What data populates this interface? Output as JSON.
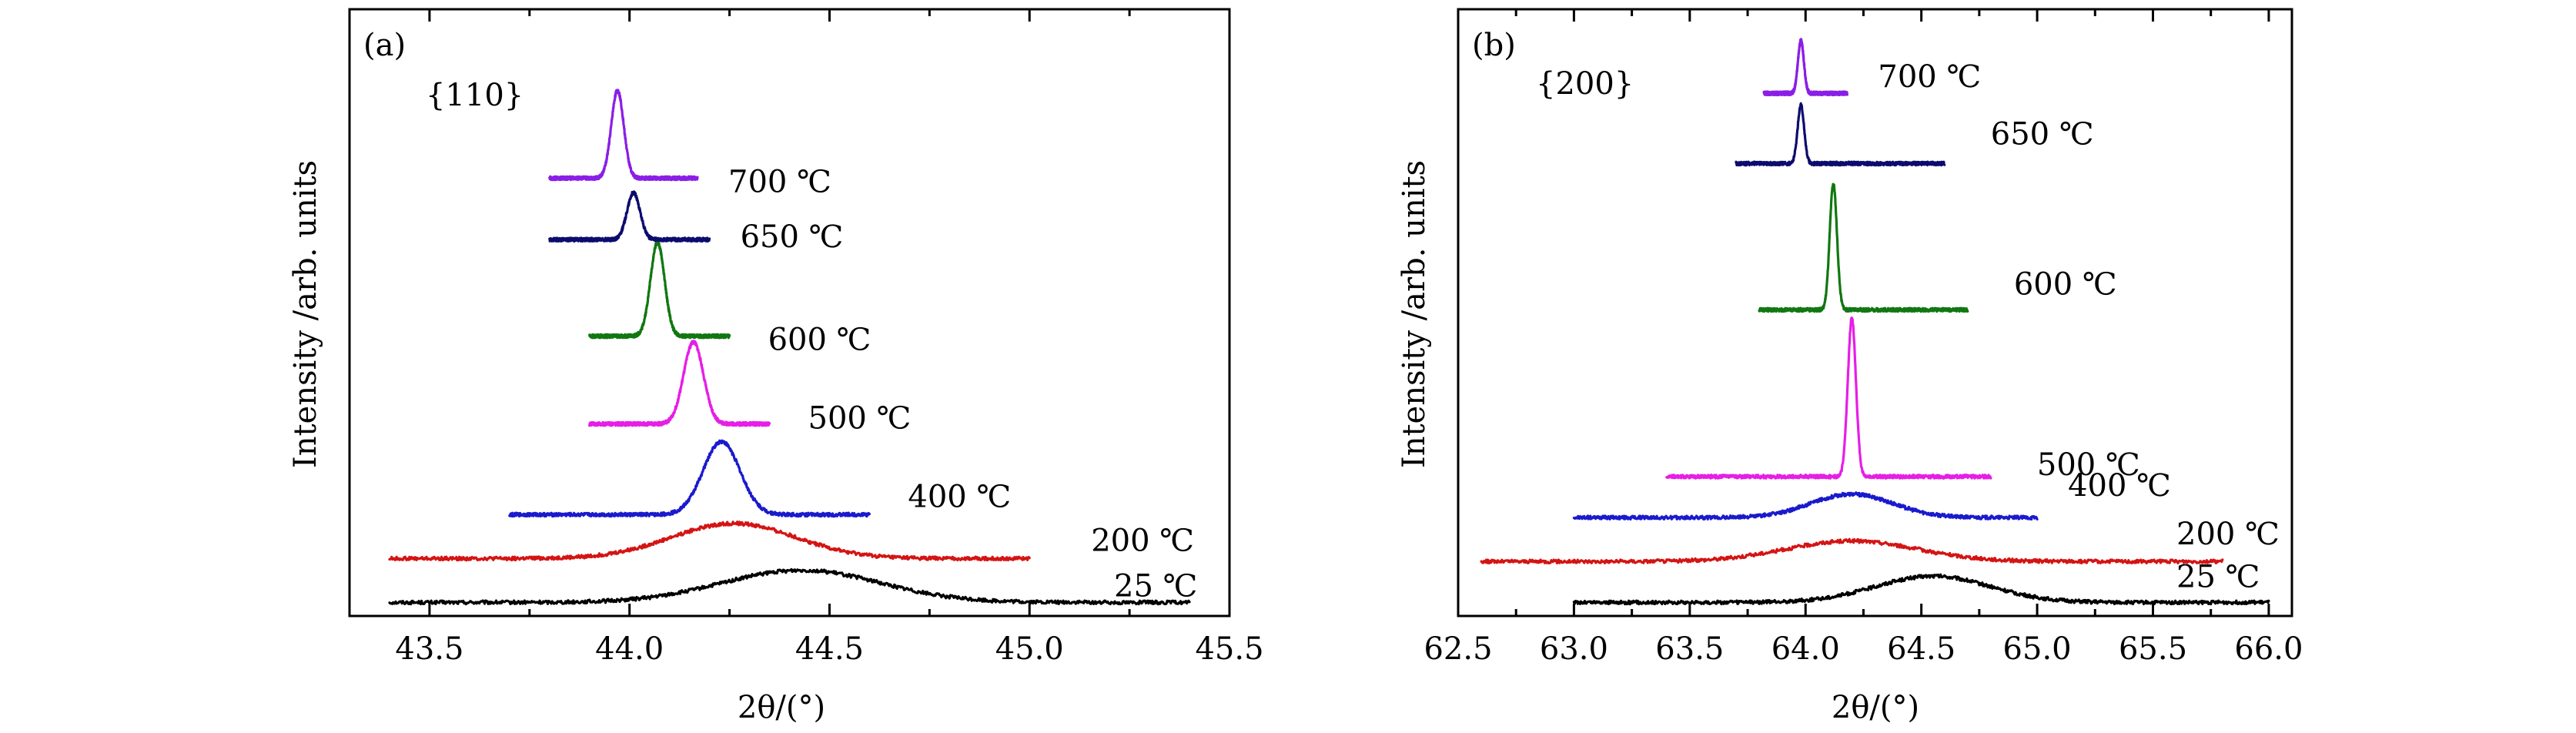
{
  "chart_data": [
    {
      "type": "line",
      "panel_label": "(a)",
      "annotation": "{110}",
      "xlabel": "2θ/(°)",
      "ylabel": "Intensity /arb. units",
      "xlim": [
        43.3,
        45.5
      ],
      "xticks": [
        "43.5",
        "44.0",
        "44.5",
        "45.0",
        "45.5"
      ],
      "yticks": "none",
      "grid": false,
      "legend": "none",
      "series": [
        {
          "label": "25 ℃",
          "color": "#000000",
          "peak": 44.43,
          "x_range": [
            43.4,
            45.4
          ],
          "width": 0.28,
          "height": 0.055,
          "baseline": 0.01
        },
        {
          "label": "200 ℃",
          "color": "#d41414",
          "peak": 44.26,
          "x_range": [
            43.4,
            45.0
          ],
          "width": 0.22,
          "height": 0.06,
          "baseline": 0.085
        },
        {
          "label": "400 ℃",
          "color": "#1a1acd",
          "peak": 44.23,
          "x_range": [
            43.7,
            44.6
          ],
          "width": 0.065,
          "height": 0.125,
          "baseline": 0.16
        },
        {
          "label": "500 ℃",
          "color": "#e61ee6",
          "peak": 44.16,
          "x_range": [
            43.9,
            44.35
          ],
          "width": 0.035,
          "height": 0.14,
          "baseline": 0.315
        },
        {
          "label": "600 ℃",
          "color": "#117711",
          "peak": 44.07,
          "x_range": [
            43.9,
            44.25
          ],
          "width": 0.025,
          "height": 0.16,
          "baseline": 0.465
        },
        {
          "label": "650 ℃",
          "color": "#0c0c6e",
          "peak": 44.01,
          "x_range": [
            43.8,
            44.2
          ],
          "width": 0.023,
          "height": 0.08,
          "baseline": 0.63
        },
        {
          "label": "700 ℃",
          "color": "#8a1ee6",
          "peak": 43.97,
          "x_range": [
            43.8,
            44.17
          ],
          "width": 0.022,
          "height": 0.15,
          "baseline": 0.735
        }
      ]
    },
    {
      "type": "line",
      "panel_label": "(b)",
      "annotation": "{200}",
      "xlabel": "2θ/(°)",
      "ylabel": "Intensity /arb. units",
      "xlim": [
        62.5,
        66.1
      ],
      "xticks": [
        "62.5",
        "63.0",
        "63.5",
        "64.0",
        "64.5",
        "65.0",
        "65.5",
        "66.0"
      ],
      "yticks": "none",
      "grid": false,
      "legend": "none",
      "series": [
        {
          "label": "25 ℃",
          "color": "#000000",
          "peak": 64.55,
          "x_range": [
            63.0,
            66.0
          ],
          "width": 0.35,
          "height": 0.045,
          "baseline": 0.01
        },
        {
          "label": "200 ℃",
          "color": "#d41414",
          "peak": 64.2,
          "x_range": [
            62.6,
            65.8
          ],
          "width": 0.4,
          "height": 0.035,
          "baseline": 0.08
        },
        {
          "label": "400 ℃",
          "color": "#1a1acd",
          "peak": 64.2,
          "x_range": [
            63.0,
            65.0
          ],
          "width": 0.25,
          "height": 0.04,
          "baseline": 0.155
        },
        {
          "label": "500 ℃",
          "color": "#e61ee6",
          "peak": 64.2,
          "x_range": [
            63.4,
            64.8
          ],
          "width": 0.025,
          "height": 0.27,
          "baseline": 0.225
        },
        {
          "label": "600 ℃",
          "color": "#117711",
          "peak": 64.12,
          "x_range": [
            63.8,
            64.7
          ],
          "width": 0.022,
          "height": 0.215,
          "baseline": 0.51
        },
        {
          "label": "650 ℃",
          "color": "#0c0c6e",
          "peak": 63.98,
          "x_range": [
            63.7,
            64.6
          ],
          "width": 0.02,
          "height": 0.1,
          "baseline": 0.76
        },
        {
          "label": "700 ℃",
          "color": "#8a1ee6",
          "peak": 63.98,
          "x_range": [
            63.82,
            64.18
          ],
          "width": 0.018,
          "height": 0.09,
          "baseline": 0.88
        }
      ]
    }
  ]
}
